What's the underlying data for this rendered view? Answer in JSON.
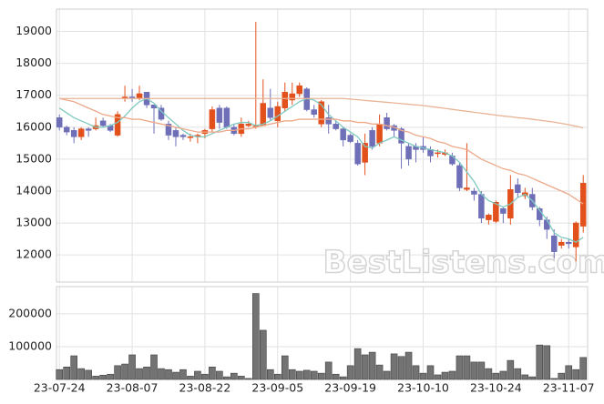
{
  "chart_data": [
    {
      "type": "candlestick",
      "watermark": "BestListens.com",
      "open": [
        16300,
        16000,
        15900,
        15700,
        15950,
        15950,
        16200,
        16050,
        15750,
        16900,
        16950,
        16900,
        17100,
        16700,
        16600,
        16100,
        15900,
        15750,
        15700,
        15700,
        15800,
        15950,
        16600,
        16600,
        16000,
        15800,
        16050,
        16050,
        16050,
        16600,
        16200,
        16600,
        16850,
        17050,
        17200,
        16550,
        16100,
        16300,
        16100,
        15950,
        15750,
        15500,
        14900,
        15900,
        15500,
        16300,
        16050,
        15950,
        15400,
        15400,
        15400,
        15300,
        15200,
        15150,
        15100,
        14800,
        14050,
        14000,
        13900,
        13100,
        13050,
        13450,
        13150,
        14200,
        13850,
        13900,
        13450,
        13100,
        12600,
        12300,
        12400,
        12250,
        12900
      ],
      "high": [
        16400,
        16050,
        16000,
        16000,
        16000,
        16300,
        16300,
        16100,
        16500,
        17300,
        17200,
        17300,
        17100,
        16700,
        16700,
        16200,
        16000,
        15800,
        15800,
        15800,
        15950,
        16650,
        16700,
        16650,
        16100,
        16300,
        16200,
        19300,
        17500,
        17200,
        16800,
        17400,
        17400,
        17400,
        17250,
        16700,
        16850,
        16700,
        16200,
        16000,
        15800,
        15600,
        15800,
        16000,
        16400,
        16450,
        16100,
        16000,
        15500,
        15500,
        15700,
        15400,
        15300,
        15300,
        15200,
        14900,
        15500,
        14100,
        14000,
        13300,
        13700,
        13500,
        14500,
        14400,
        14100,
        14100,
        13500,
        13200,
        12800,
        12500,
        12500,
        13050,
        14500
      ],
      "low": [
        15900,
        15750,
        15500,
        15600,
        15700,
        15900,
        16000,
        15850,
        15700,
        16800,
        16800,
        16850,
        16600,
        15800,
        16200,
        15600,
        15400,
        15600,
        15550,
        15500,
        15650,
        15850,
        15950,
        15950,
        15750,
        15700,
        16000,
        15950,
        16050,
        16200,
        16000,
        16500,
        16700,
        16950,
        16500,
        16300,
        16000,
        15800,
        15900,
        15400,
        15500,
        14800,
        14500,
        15300,
        15400,
        15900,
        15700,
        14700,
        14800,
        14900,
        15200,
        14900,
        15050,
        15100,
        14800,
        14000,
        14000,
        13700,
        13000,
        12950,
        13000,
        13000,
        12950,
        13800,
        13750,
        13400,
        12900,
        12500,
        11900,
        12200,
        12200,
        11800,
        12700
      ],
      "close": [
        16000,
        15850,
        15700,
        15950,
        15900,
        16050,
        16050,
        15900,
        16400,
        16950,
        16900,
        17050,
        16700,
        16600,
        16250,
        15750,
        15700,
        15700,
        15700,
        15750,
        15900,
        16550,
        16150,
        16000,
        15800,
        16100,
        16100,
        16050,
        16750,
        16300,
        16650,
        17100,
        17050,
        17300,
        16550,
        16400,
        16800,
        16100,
        15950,
        15600,
        15550,
        14850,
        15500,
        15400,
        16100,
        15950,
        15900,
        15500,
        15000,
        15300,
        15300,
        15100,
        15200,
        15200,
        14850,
        14100,
        14100,
        13900,
        13150,
        13250,
        13650,
        13300,
        14050,
        13950,
        13950,
        13500,
        13100,
        12800,
        12100,
        12400,
        12350,
        13000,
        14250
      ],
      "up_color": "#e2501c",
      "down_color": "#6f6fb8",
      "moving_averages": [
        {
          "color": "#7fc9c0",
          "values": [
            16600,
            16450,
            16300,
            16200,
            16100,
            16000,
            16000,
            16050,
            16150,
            16350,
            16600,
            16800,
            16900,
            16750,
            16500,
            16300,
            16100,
            15900,
            15750,
            15700,
            15700,
            15800,
            15900,
            16000,
            16100,
            16150,
            16150,
            16050,
            16100,
            16200,
            16350,
            16500,
            16650,
            16800,
            16900,
            16850,
            16700,
            16400,
            16200,
            16000,
            15850,
            15700,
            15400,
            15350,
            15500,
            15600,
            15700,
            15600,
            15500,
            15400,
            15350,
            15300,
            15250,
            15200,
            15100,
            14900,
            14600,
            14300,
            13900,
            13700,
            13600,
            13500,
            13600,
            13800,
            13900,
            13700,
            13400,
            13100,
            12700,
            12550,
            12500,
            12400,
            12550
          ]
        },
        {
          "color": "#eda98a",
          "values": [
            16900,
            16850,
            16800,
            16700,
            16600,
            16500,
            16400,
            16350,
            16300,
            16300,
            16250,
            16250,
            16200,
            16150,
            16100,
            16050,
            16000,
            15950,
            15900,
            15850,
            15850,
            15850,
            15850,
            15900,
            15900,
            15950,
            15950,
            16000,
            16050,
            16100,
            16150,
            16200,
            16200,
            16250,
            16250,
            16250,
            16250,
            16250,
            16250,
            16200,
            16200,
            16150,
            16150,
            16100,
            16100,
            16050,
            16000,
            15900,
            15850,
            15750,
            15700,
            15650,
            15550,
            15500,
            15400,
            15350,
            15300,
            15150,
            15000,
            14900,
            14800,
            14700,
            14650,
            14550,
            14500,
            14400,
            14300,
            14200,
            14100,
            14000,
            13900,
            13750,
            13600
          ]
        },
        {
          "color": "#e8b395",
          "values": [
            16900,
            16900,
            16900,
            16900,
            16900,
            16900,
            16900,
            16900,
            16900,
            16900,
            16900,
            16900,
            16900,
            16900,
            16900,
            16900,
            16900,
            16900,
            16900,
            16900,
            16900,
            16900,
            16900,
            16900,
            16900,
            16900,
            16900,
            16900,
            16900,
            16900,
            16900,
            16900,
            16900,
            16900,
            16900,
            16900,
            16900,
            16900,
            16900,
            16900,
            16880,
            16860,
            16840,
            16820,
            16800,
            16780,
            16760,
            16740,
            16720,
            16700,
            16680,
            16650,
            16620,
            16590,
            16560,
            16530,
            16500,
            16470,
            16440,
            16410,
            16380,
            16350,
            16330,
            16300,
            16280,
            16250,
            16220,
            16190,
            16160,
            16120,
            16080,
            16030,
            15980
          ]
        }
      ],
      "ylim": [
        11150,
        19700
      ],
      "yticks": [
        12000,
        13000,
        14000,
        15000,
        16000,
        17000,
        18000,
        19000
      ],
      "grid": true
    },
    {
      "type": "bar",
      "categories": [
        "23-07-24",
        null,
        null,
        null,
        null,
        null,
        null,
        null,
        null,
        null,
        "23-08-07",
        null,
        null,
        null,
        null,
        null,
        null,
        null,
        null,
        null,
        "23-08-22",
        null,
        null,
        null,
        null,
        null,
        null,
        null,
        null,
        null,
        "23-09-05",
        null,
        null,
        null,
        null,
        null,
        null,
        null,
        null,
        null,
        "23-09-19",
        null,
        null,
        null,
        null,
        null,
        null,
        null,
        null,
        null,
        "23-10-10",
        null,
        null,
        null,
        null,
        null,
        null,
        null,
        null,
        null,
        "23-10-24",
        null,
        null,
        null,
        null,
        null,
        null,
        null,
        null,
        null,
        "23-11-07",
        null,
        null
      ],
      "values": [
        30000,
        38000,
        72000,
        33000,
        28000,
        10000,
        13000,
        16000,
        42000,
        47000,
        75000,
        33000,
        38000,
        75000,
        33000,
        30000,
        22000,
        30000,
        10000,
        25000,
        16000,
        38000,
        25000,
        8000,
        19000,
        10000,
        3000,
        262000,
        150000,
        30000,
        16000,
        72000,
        30000,
        25000,
        28000,
        25000,
        19000,
        53000,
        16000,
        8000,
        42000,
        94000,
        75000,
        83000,
        44000,
        25000,
        78000,
        70000,
        83000,
        42000,
        19000,
        42000,
        14000,
        22000,
        25000,
        72000,
        72000,
        53000,
        53000,
        33000,
        19000,
        25000,
        58000,
        33000,
        14000,
        8000,
        105000,
        103000,
        3000,
        19000,
        42000,
        30000,
        67000
      ],
      "color": "#737373",
      "ylim": [
        0,
        283000
      ],
      "yticks": [
        100000,
        200000
      ],
      "grid": true
    }
  ]
}
